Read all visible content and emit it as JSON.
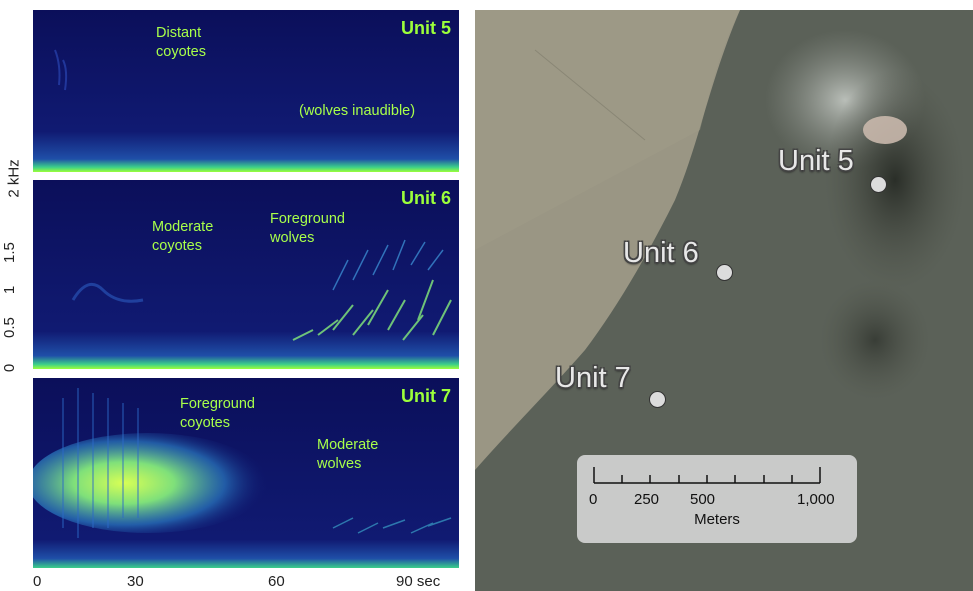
{
  "y_axis": {
    "unit": "kHz",
    "unit_label": "2 kHz",
    "ticks": [
      "0",
      "0.5",
      "1",
      "1.5"
    ]
  },
  "x_axis": {
    "ticks": [
      "0",
      "30",
      "60",
      "90 sec"
    ]
  },
  "spectrogram_colors": {
    "background": "#0c1160",
    "low": "#1b3fa0",
    "mid": "#2aa0c0",
    "high": "#b8ff4a"
  },
  "panels": [
    {
      "title": "Unit 5",
      "annotations": [
        {
          "line1": "Distant",
          "line2": "coyotes"
        },
        {
          "line1": "(wolves inaudible)",
          "line2": ""
        }
      ]
    },
    {
      "title": "Unit 6",
      "annotations": [
        {
          "line1": "Moderate",
          "line2": "coyotes"
        },
        {
          "line1": "Foreground",
          "line2": "wolves"
        }
      ]
    },
    {
      "title": "Unit 7",
      "annotations": [
        {
          "line1": "Foreground",
          "line2": "coyotes"
        },
        {
          "line1": "Moderate",
          "line2": "wolves"
        }
      ]
    }
  ],
  "map": {
    "labels": [
      "Unit 5",
      "Unit 6",
      "Unit 7"
    ],
    "scale_bar": {
      "ticks": [
        "0",
        "250",
        "500",
        "1,000"
      ],
      "unit": "Meters"
    }
  }
}
